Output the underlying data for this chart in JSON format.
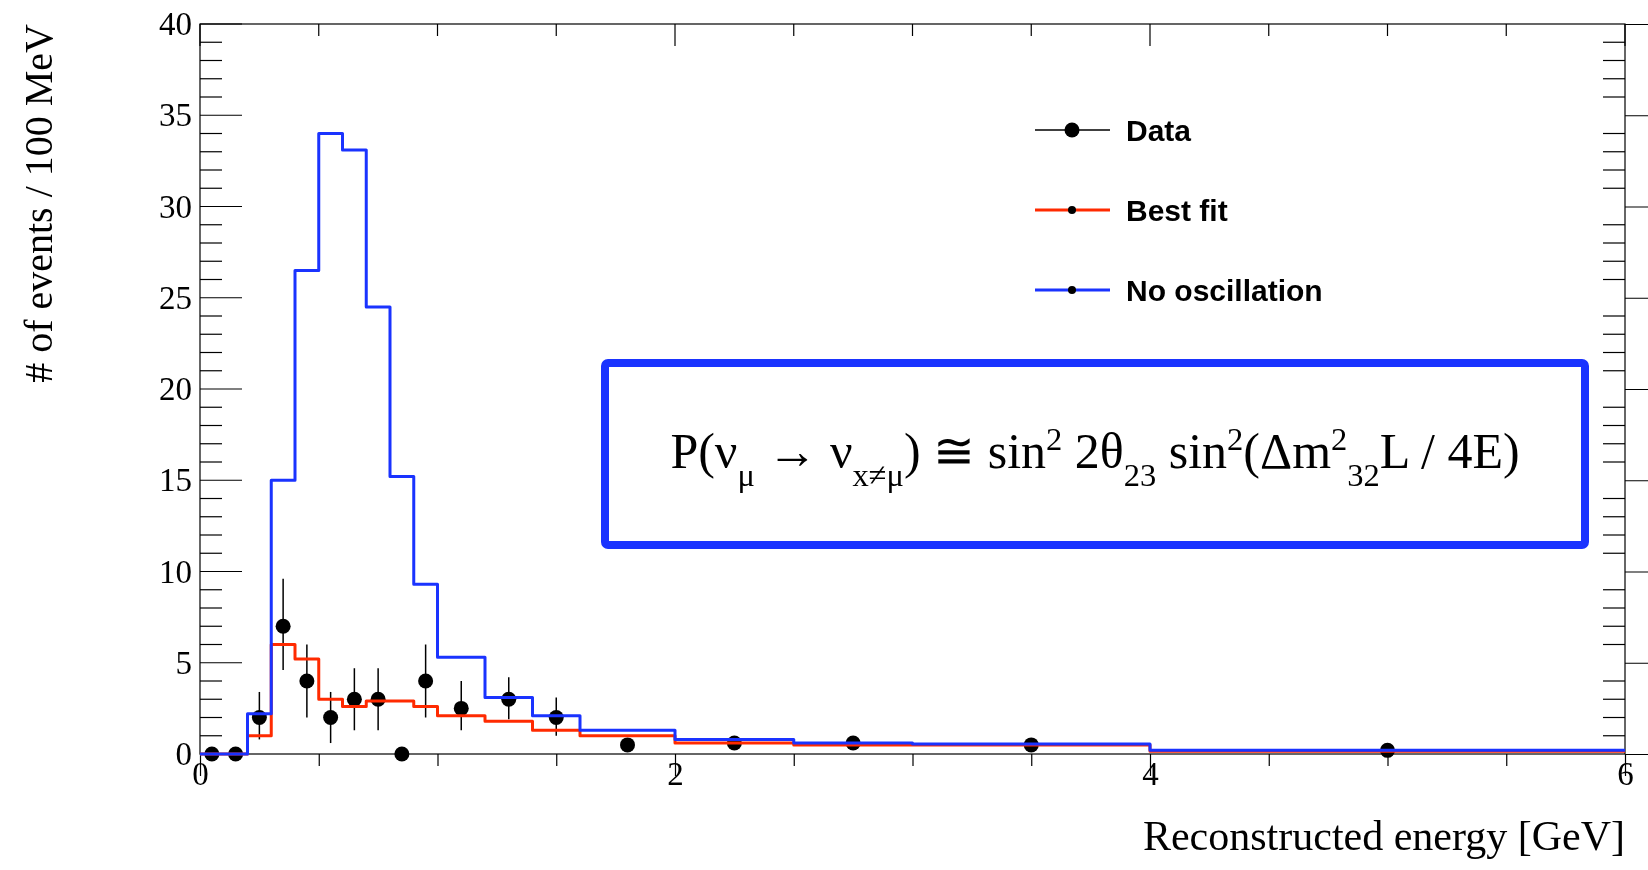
{
  "chart_data": {
    "type": "step",
    "xlabel": "Reconstructed energy [GeV]",
    "ylabel": "# of events / 100 MeV",
    "xlim": [
      0,
      6
    ],
    "ylim": [
      0,
      40
    ],
    "xticks": [
      0,
      {
        "value": 0.5,
        "label": null
      },
      {
        "value": 1,
        "label": null
      },
      {
        "value": 1.5,
        "label": null
      },
      2,
      {
        "value": 2.5,
        "label": null
      },
      {
        "value": 3,
        "label": null
      },
      {
        "value": 3.5,
        "label": null
      },
      4,
      {
        "value": 4.5,
        "label": null
      },
      {
        "value": 5,
        "label": null
      },
      {
        "value": 5.5,
        "label": null
      },
      6
    ],
    "yticks": [
      0,
      5,
      10,
      15,
      20,
      25,
      30,
      35,
      40
    ],
    "legend": "top right",
    "grid": false,
    "series": [
      {
        "name": "Data",
        "type": "scatter",
        "color": "#000000",
        "marker": "circle",
        "x": [
          0.05,
          0.15,
          0.25,
          0.35,
          0.45,
          0.55,
          0.65,
          0.75,
          0.85,
          0.95,
          1.1,
          1.3,
          1.5,
          1.8,
          2.25,
          2.75,
          3.5,
          5.0
        ],
        "values": [
          0,
          0,
          2,
          7,
          4,
          2,
          3,
          3,
          0,
          4,
          2.5,
          3,
          2,
          0.5,
          0.6,
          0.6,
          0.5,
          0.2
        ],
        "errors": [
          null,
          null,
          [
            0.8,
            3.4
          ],
          [
            4.6,
            9.6
          ],
          [
            2.0,
            6.0
          ],
          [
            0.6,
            3.4
          ],
          [
            1.3,
            4.7
          ],
          [
            1.3,
            4.7
          ],
          null,
          [
            2.0,
            6.0
          ],
          [
            1.3,
            4.0
          ],
          [
            1.9,
            4.2
          ],
          [
            1.0,
            3.1
          ],
          null,
          null,
          null,
          null,
          null
        ]
      },
      {
        "name": "Best fit",
        "type": "step",
        "color": "#ff2a00",
        "x": [
          0,
          0.1,
          0.2,
          0.3,
          0.4,
          0.5,
          0.6,
          0.7,
          0.8,
          0.9,
          1.0,
          1.2,
          1.4,
          1.6,
          2.0,
          2.5,
          3.0,
          4.0,
          6.0
        ],
        "values": [
          0,
          0,
          1.0,
          6.0,
          5.2,
          3.0,
          2.6,
          2.9,
          2.9,
          2.6,
          2.1,
          1.8,
          1.3,
          1.0,
          0.6,
          0.5,
          0.5,
          0.15,
          0.15
        ]
      },
      {
        "name": "No oscillation",
        "type": "step",
        "color": "#1a33ff",
        "x": [
          0,
          0.1,
          0.2,
          0.3,
          0.4,
          0.5,
          0.6,
          0.7,
          0.8,
          0.9,
          1.0,
          1.2,
          1.4,
          1.6,
          2.0,
          2.5,
          3.0,
          4.0,
          6.0
        ],
        "values": [
          0,
          0,
          2.2,
          15.0,
          26.5,
          34.0,
          33.1,
          24.5,
          15.2,
          9.3,
          5.3,
          3.1,
          2.1,
          1.3,
          0.8,
          0.6,
          0.55,
          0.2,
          0.2
        ]
      }
    ],
    "annotations": [
      "P(ν$_{μ}$ → ν$_{x≠μ}$) ≅ sin$^{2}$ 2θ$_{23}$ sin$^{2}$(Δm$^{2}$$_{32}$L / 4E)"
    ]
  }
}
